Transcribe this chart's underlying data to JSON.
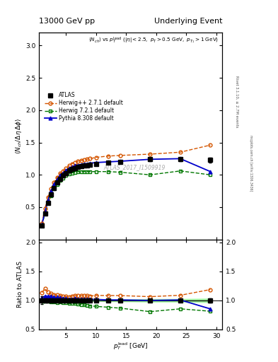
{
  "title_left": "13000 GeV pp",
  "title_right": "Underlying Event",
  "subtitle": "<N_{ch}> vs p_{T}^{lead} (|#eta| < 2.5, p_{T} > 0.5 GeV, p_{T_{1}} > 1 GeV)",
  "ylabel_main": "<N_{ch} / #Delta#eta delta>",
  "ylabel_ratio": "Ratio to ATLAS",
  "xlabel": "p_{T}^{l}ead [GeV]",
  "watermark": "ATLAS_2017_I1509919",
  "right_label_top": "Rivet 3.1.10, ≥ 2.7M events",
  "right_label_bot": "mcplots.cern.ch [arXiv:1306.3436]",
  "ylim_main": [
    0.0,
    3.2
  ],
  "ylim_ratio": [
    0.5,
    2.05
  ],
  "xlim": [
    0.5,
    31
  ],
  "atlas_x": [
    1.0,
    1.5,
    2.0,
    2.5,
    3.0,
    3.5,
    4.0,
    4.5,
    5.0,
    5.5,
    6.0,
    6.5,
    7.0,
    7.5,
    8.0,
    8.5,
    9.0,
    10.0,
    12.0,
    14.0,
    19.0,
    24.0,
    29.0
  ],
  "atlas_y": [
    0.22,
    0.4,
    0.57,
    0.7,
    0.8,
    0.88,
    0.94,
    0.99,
    1.03,
    1.07,
    1.09,
    1.1,
    1.12,
    1.13,
    1.14,
    1.15,
    1.16,
    1.17,
    1.19,
    1.2,
    1.24,
    1.24,
    1.23
  ],
  "atlas_yerr": [
    0.015,
    0.015,
    0.015,
    0.015,
    0.012,
    0.012,
    0.012,
    0.012,
    0.012,
    0.012,
    0.012,
    0.012,
    0.012,
    0.012,
    0.012,
    0.012,
    0.012,
    0.012,
    0.02,
    0.02,
    0.03,
    0.03,
    0.04
  ],
  "herwigpp_x": [
    1.0,
    1.5,
    2.0,
    2.5,
    3.0,
    3.5,
    4.0,
    4.5,
    5.0,
    5.5,
    6.0,
    6.5,
    7.0,
    7.5,
    8.0,
    8.5,
    9.0,
    10.0,
    12.0,
    14.0,
    19.0,
    24.0,
    29.0
  ],
  "herwigpp_y": [
    0.25,
    0.48,
    0.65,
    0.78,
    0.88,
    0.96,
    1.02,
    1.06,
    1.1,
    1.14,
    1.17,
    1.19,
    1.21,
    1.22,
    1.23,
    1.24,
    1.25,
    1.27,
    1.29,
    1.3,
    1.32,
    1.35,
    1.46
  ],
  "herwig_x": [
    1.0,
    1.5,
    2.0,
    2.5,
    3.0,
    3.5,
    4.0,
    4.5,
    5.0,
    5.5,
    6.0,
    6.5,
    7.0,
    7.5,
    8.0,
    8.5,
    9.0,
    10.0,
    12.0,
    14.0,
    19.0,
    24.0,
    29.0
  ],
  "herwig_y": [
    0.22,
    0.4,
    0.56,
    0.68,
    0.78,
    0.85,
    0.91,
    0.95,
    0.99,
    1.01,
    1.03,
    1.04,
    1.05,
    1.05,
    1.05,
    1.05,
    1.05,
    1.05,
    1.05,
    1.04,
    1.0,
    1.06,
    1.0
  ],
  "pythia_x": [
    1.0,
    1.5,
    2.0,
    2.5,
    3.0,
    3.5,
    4.0,
    4.5,
    5.0,
    5.5,
    6.0,
    6.5,
    7.0,
    7.5,
    8.0,
    8.5,
    9.0,
    10.0,
    12.0,
    14.0,
    19.0,
    24.0,
    29.0
  ],
  "pythia_y": [
    0.23,
    0.43,
    0.61,
    0.75,
    0.85,
    0.93,
    0.99,
    1.03,
    1.07,
    1.1,
    1.12,
    1.14,
    1.15,
    1.16,
    1.17,
    1.17,
    1.18,
    1.19,
    1.2,
    1.21,
    1.24,
    1.25,
    1.05
  ],
  "atlas_color": "#000000",
  "herwigpp_color": "#d45500",
  "herwig_color": "#007700",
  "pythia_color": "#0000cc",
  "atlas_band_light": "#bbffbb",
  "atlas_band_dark": "#66bb66",
  "yticks_main": [
    0.5,
    1.0,
    1.5,
    2.0,
    2.5,
    3.0
  ],
  "yticks_ratio": [
    0.5,
    1.0,
    1.5,
    2.0
  ]
}
